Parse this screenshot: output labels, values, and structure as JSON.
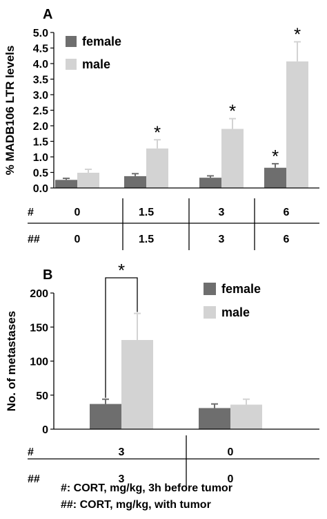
{
  "chart_data": [
    {
      "panel_label": "A",
      "type": "bar",
      "ylabel": "% MADB106 LTR levels",
      "ylim": [
        0,
        5.0
      ],
      "yticks": [
        "0.0",
        "0.5",
        "1.0",
        "1.5",
        "2.0",
        "2.5",
        "3.0",
        "3.5",
        "4.0",
        "4.5",
        "5.0"
      ],
      "legend": "top-left",
      "table_rows": [
        {
          "label": "#",
          "values": [
            "0",
            "1.5",
            "3",
            "6"
          ]
        },
        {
          "label": "##",
          "values": [
            "0",
            "1.5",
            "3",
            "6"
          ]
        }
      ],
      "series": [
        {
          "name": "female",
          "color": "#6e6e6e",
          "values": [
            0.26,
            0.38,
            0.33,
            0.65
          ],
          "errors": [
            0.05,
            0.08,
            0.06,
            0.13
          ]
        },
        {
          "name": "male",
          "color": "#d3d3d3",
          "values": [
            0.49,
            1.27,
            1.9,
            4.07
          ],
          "errors": [
            0.11,
            0.28,
            0.33,
            0.63
          ]
        }
      ],
      "significance": [
        {
          "series": 1,
          "group": 1,
          "label": "*"
        },
        {
          "series": 1,
          "group": 2,
          "label": "*"
        },
        {
          "series": 1,
          "group": 3,
          "label": "*"
        },
        {
          "series": 0,
          "group": 3,
          "label": "*"
        }
      ]
    },
    {
      "panel_label": "B",
      "type": "bar",
      "ylabel": "No. of metastases",
      "ylim": [
        0,
        200
      ],
      "yticks": [
        "0",
        "50",
        "100",
        "150",
        "200"
      ],
      "legend": "top-right",
      "table_rows": [
        {
          "label": "#",
          "values": [
            "3",
            "0"
          ]
        },
        {
          "label": "##",
          "values": [
            "3",
            "0"
          ]
        }
      ],
      "series": [
        {
          "name": "female",
          "color": "#6e6e6e",
          "values": [
            37,
            31
          ],
          "errors": [
            7,
            6
          ]
        },
        {
          "name": "male",
          "color": "#d3d3d3",
          "values": [
            131,
            36
          ],
          "errors": [
            39,
            8
          ]
        }
      ],
      "bracket": {
        "group": 0,
        "label": "*"
      }
    }
  ],
  "footnotes": [
    "#: CORT, mg/kg, 3h before tumor",
    "##: CORT, mg/kg, with tumor"
  ]
}
